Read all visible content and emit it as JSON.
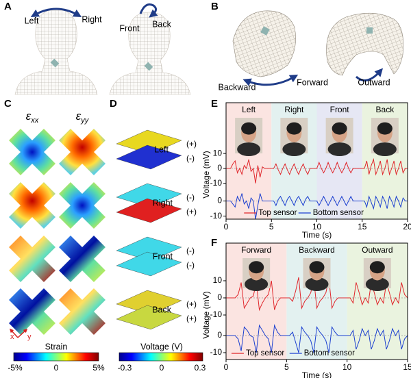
{
  "panel_labels": [
    "A",
    "B",
    "C",
    "D",
    "E",
    "F"
  ],
  "panel_a": {
    "labels": [
      "Left",
      "Right",
      "Front",
      "Back"
    ]
  },
  "panel_b": {
    "labels": [
      "Backward",
      "Forward",
      "Outward"
    ]
  },
  "panel_c": {
    "columns": [
      {
        "symbol": "ε",
        "subscript": "xx"
      },
      {
        "symbol": "ε",
        "subscript": "yy"
      }
    ],
    "axes": [
      "x",
      "y"
    ],
    "colorbar": {
      "title": "Strain",
      "ticks": [
        "-5%",
        "0",
        "5%"
      ]
    }
  },
  "panel_d": {
    "rows": [
      "Left",
      "Right",
      "Front",
      "Back"
    ],
    "signs": [
      [
        "(+)",
        "(-)"
      ],
      [
        "(-)",
        "(+)"
      ],
      [
        "(-)",
        "(-)"
      ],
      [
        "(+)",
        "(+)"
      ]
    ],
    "colorbar": {
      "title": "Voltage (V)",
      "ticks": [
        "-0.3",
        "0",
        "0.3"
      ]
    }
  },
  "chart_data": [
    {
      "type": "line",
      "xlabel": "Time (s)",
      "ylabel": "Voltage (mV)",
      "x": [
        0,
        0.25,
        0.5,
        0.75,
        1,
        1.25,
        1.5,
        1.75,
        2,
        2.25,
        2.5,
        2.75,
        3,
        3.25,
        3.5,
        3.75,
        4,
        4.25,
        4.5,
        4.75,
        5,
        5.25,
        5.5,
        5.75,
        6,
        6.25,
        6.5,
        6.75,
        7,
        7.25,
        7.5,
        7.75,
        8,
        8.25,
        8.5,
        8.75,
        9,
        9.25,
        9.5,
        9.75,
        10,
        10.25,
        10.5,
        10.75,
        11,
        11.25,
        11.5,
        11.75,
        12,
        12.25,
        12.5,
        12.75,
        13,
        13.25,
        13.5,
        13.75,
        14,
        14.25,
        14.5,
        14.75,
        15,
        15.25,
        15.5,
        15.75,
        16,
        16.25,
        16.5,
        16.75,
        17,
        17.25,
        17.5,
        17.75,
        18,
        18.25,
        18.5,
        18.75,
        19,
        19.25,
        19.5,
        19.75,
        20
      ],
      "xlim": [
        0,
        20
      ],
      "xticks": [
        0,
        5,
        10,
        15,
        20
      ],
      "ylim": [
        -34,
        44
      ],
      "yticks": [
        10,
        0,
        -10
      ],
      "y2lim": [
        -12,
        65
      ],
      "y2ticks": [
        0,
        -10
      ],
      "legend": "lower center",
      "regions": [
        {
          "label": "Left",
          "start": 0,
          "end": 5,
          "color": "#fbe4e1"
        },
        {
          "label": "Right",
          "start": 5,
          "end": 10,
          "color": "#e3f1f0"
        },
        {
          "label": "Front",
          "start": 10,
          "end": 15,
          "color": "#e6e7f4"
        },
        {
          "label": "Back",
          "start": 15,
          "end": 20,
          "color": "#eaf3df"
        }
      ],
      "series": [
        {
          "name": "Top sensor",
          "color": "#e0262b",
          "values": [
            0,
            0,
            0,
            3,
            5,
            -3,
            0,
            -4,
            2,
            0,
            6,
            -2,
            0,
            -10,
            2,
            -6,
            1,
            0,
            0,
            0,
            0,
            0,
            3,
            -1,
            -4,
            0,
            3,
            -1,
            -4,
            0,
            3,
            -1,
            -4,
            0,
            3,
            -1,
            -4,
            0,
            0,
            0,
            0,
            4,
            0,
            -3,
            0,
            4,
            0,
            -3,
            0,
            4,
            0,
            -3,
            0,
            4,
            0,
            -3,
            0,
            0,
            0,
            0,
            0,
            0,
            5,
            -4,
            2,
            6,
            -4,
            0,
            5,
            -4,
            0,
            6,
            -4,
            0,
            5,
            -4,
            0,
            5,
            -3,
            0,
            0
          ]
        },
        {
          "name": "Bottom sensor",
          "color": "#1b3fd0",
          "axis": "y2",
          "values": [
            0,
            0,
            0,
            -2,
            -4,
            3,
            0,
            5,
            -2,
            0,
            -5,
            2,
            0,
            -12,
            -3,
            5,
            0,
            0,
            0,
            0,
            0,
            0,
            -3,
            1,
            3,
            0,
            -3,
            1,
            3,
            0,
            -3,
            1,
            3,
            0,
            -3,
            1,
            3,
            0,
            0,
            0,
            0,
            -3,
            0,
            3,
            0,
            -3,
            0,
            3,
            0,
            -3,
            0,
            3,
            0,
            -3,
            0,
            3,
            0,
            0,
            0,
            0,
            0,
            0,
            -4,
            3,
            -1,
            -5,
            3,
            0,
            -4,
            3,
            0,
            -5,
            3,
            0,
            -4,
            3,
            0,
            -4,
            2,
            0,
            0
          ]
        }
      ]
    },
    {
      "type": "line",
      "xlabel": "Time (s)",
      "ylabel": "Voltage (mV)",
      "x": [
        0,
        0.25,
        0.5,
        0.75,
        1,
        1.25,
        1.5,
        1.75,
        2,
        2.25,
        2.5,
        2.75,
        3,
        3.25,
        3.5,
        3.75,
        4,
        4.25,
        4.5,
        4.75,
        5,
        5.25,
        5.5,
        5.75,
        6,
        6.25,
        6.5,
        6.75,
        7,
        7.25,
        7.5,
        7.75,
        8,
        8.25,
        8.5,
        8.75,
        9,
        9.25,
        9.5,
        9.75,
        10,
        10.25,
        10.5,
        10.75,
        11,
        11.25,
        11.5,
        11.75,
        12,
        12.25,
        12.5,
        12.75,
        13,
        13.25,
        13.5,
        13.75,
        14,
        14.25,
        14.5,
        14.75,
        15
      ],
      "xlim": [
        0,
        15
      ],
      "xticks": [
        0,
        5,
        10,
        15
      ],
      "ylim": [
        -36,
        32
      ],
      "yticks": [
        10,
        0,
        -10
      ],
      "y2lim": [
        -14,
        54
      ],
      "y2ticks": [
        0,
        -10
      ],
      "legend": "lower left",
      "regions": [
        {
          "label": "Forward",
          "start": 0,
          "end": 5,
          "color": "#fbe4e1"
        },
        {
          "label": "Backward",
          "start": 5,
          "end": 10,
          "color": "#e3f1f0"
        },
        {
          "label": "Outward",
          "start": 10,
          "end": 15,
          "color": "#eaf3df"
        }
      ],
      "series": [
        {
          "name": "Top sensor",
          "color": "#e0262b",
          "values": [
            0,
            0,
            0,
            0,
            2,
            9,
            -6,
            -3,
            0,
            1,
            9,
            -7,
            -3,
            0,
            2,
            10,
            -7,
            -2,
            0,
            0,
            0,
            0,
            -2,
            4,
            12,
            -6,
            -2,
            0,
            3,
            11,
            -6,
            -2,
            0,
            3,
            11,
            -6,
            -2,
            0,
            0,
            0,
            0,
            0,
            -3,
            9,
            3,
            -4,
            0,
            -3,
            9,
            3,
            -4,
            0,
            -3,
            9,
            3,
            -4,
            0,
            -3,
            9,
            2,
            0
          ]
        },
        {
          "name": "Bottom sensor",
          "color": "#1b3fd0",
          "axis": "y2",
          "values": [
            0,
            0,
            0,
            0,
            -2,
            -9,
            5,
            3,
            0,
            -1,
            -10,
            6,
            3,
            0,
            -2,
            -10,
            6,
            2,
            0,
            0,
            0,
            0,
            2,
            -4,
            -10,
            5,
            2,
            0,
            -3,
            -10,
            5,
            2,
            0,
            -3,
            -10,
            5,
            2,
            0,
            0,
            0,
            0,
            0,
            3,
            -8,
            -3,
            4,
            0,
            3,
            -8,
            -3,
            4,
            0,
            3,
            -8,
            -3,
            4,
            0,
            3,
            -8,
            -2,
            0
          ]
        }
      ]
    }
  ]
}
